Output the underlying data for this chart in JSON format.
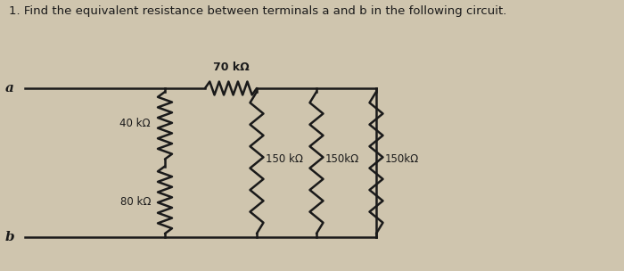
{
  "title": "1. Find the equivalent resistance between terminals a and b in the following circuit.",
  "bg_color": "#cfc5ae",
  "wire_color": "#1a1a1a",
  "text_color": "#1a1a1a",
  "labels": {
    "a": "a",
    "b": "b",
    "R_40": "40 kΩ",
    "R_80": "80 kΩ",
    "R_70": "70 kΩ",
    "R_150_1": "150 kΩ",
    "R_150_2": "150kΩ",
    "R_150_3": "150kΩ"
  },
  "title_fontsize": 9.5,
  "label_fontsize": 9.0,
  "res_fontsize": 8.5,
  "lw": 1.8
}
